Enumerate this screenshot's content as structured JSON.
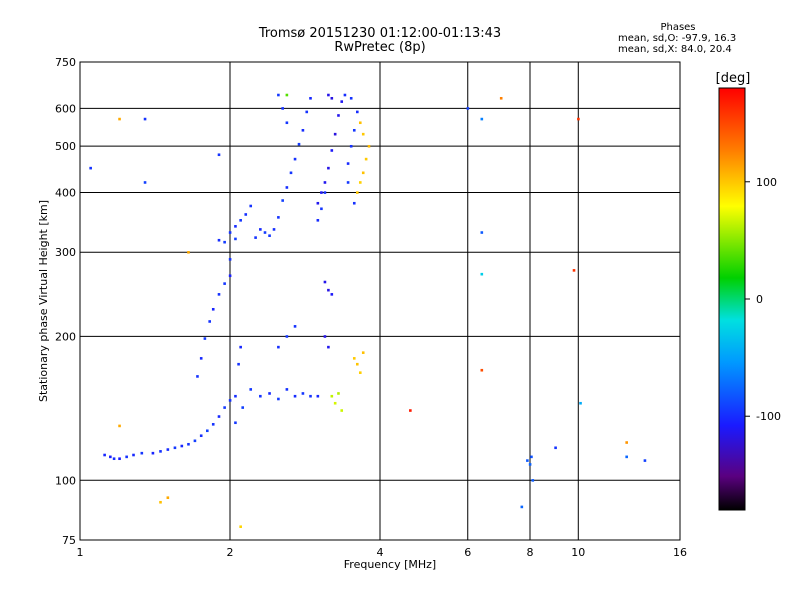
{
  "chart_data": {
    "type": "scatter",
    "title": "Tromsø 20151230 01:12:00-01:13:43",
    "subtitle": "RwPretec (8p)",
    "xlabel": "Frequency [MHz]",
    "ylabel": "Stationary phase Virtual Height [km]",
    "x_scale": "log2",
    "y_scale": "log",
    "xlim": [
      1,
      16
    ],
    "ylim": [
      75,
      750
    ],
    "x_ticks": [
      1,
      2,
      4,
      6,
      8,
      10,
      16
    ],
    "y_ticks": [
      75,
      100,
      200,
      300,
      400,
      500,
      600,
      750
    ],
    "grid": true,
    "phase_stats": {
      "title": "Phases",
      "line_o": "mean, sd,O: -97.9, 16.3",
      "line_x": "mean, sd,X:  84.0, 20.4"
    },
    "colorbar": {
      "label": "[deg]",
      "ticks": [
        100,
        0,
        -100
      ],
      "range": [
        -180,
        180
      ]
    },
    "series": [
      {
        "name": "",
        "points": [
          [
            1.12,
            113,
            -105
          ],
          [
            1.15,
            112,
            -108
          ],
          [
            1.17,
            111,
            -102
          ],
          [
            1.2,
            111,
            -110
          ],
          [
            1.24,
            112,
            -100
          ],
          [
            1.28,
            113,
            -104
          ],
          [
            1.33,
            114,
            -99
          ],
          [
            1.4,
            114,
            -106
          ],
          [
            1.45,
            115,
            -100
          ],
          [
            1.5,
            116,
            -103
          ],
          [
            1.55,
            117,
            -98
          ],
          [
            1.6,
            118,
            -105
          ],
          [
            1.65,
            119,
            -100
          ],
          [
            1.7,
            121,
            -96
          ],
          [
            1.75,
            124,
            -102
          ],
          [
            1.8,
            127,
            -95
          ],
          [
            1.85,
            131,
            -100
          ],
          [
            1.9,
            136,
            -104
          ],
          [
            1.95,
            142,
            -98
          ],
          [
            2.0,
            147,
            -101
          ],
          [
            1.72,
            165,
            -100
          ],
          [
            1.75,
            180,
            -104
          ],
          [
            1.78,
            198,
            -97
          ],
          [
            1.82,
            215,
            -100
          ],
          [
            1.85,
            228,
            -106
          ],
          [
            1.9,
            245,
            -101
          ],
          [
            1.95,
            258,
            -99
          ],
          [
            2.0,
            268,
            -108
          ],
          [
            2.0,
            290,
            -100
          ],
          [
            2.05,
            132,
            -98
          ],
          [
            2.05,
            150,
            -102
          ],
          [
            2.08,
            175,
            -100
          ],
          [
            2.1,
            190,
            -105
          ],
          [
            2.12,
            142,
            -95
          ]
        ]
      },
      {
        "name": "",
        "points": [
          [
            1.95,
            315,
            -97
          ],
          [
            2.0,
            330,
            -100
          ],
          [
            2.05,
            340,
            -103
          ],
          [
            2.1,
            350,
            -99
          ],
          [
            2.15,
            360,
            -101
          ],
          [
            2.05,
            320,
            -96
          ],
          [
            1.9,
            318,
            -102
          ],
          [
            2.2,
            375,
            -100
          ],
          [
            2.3,
            335,
            -104
          ],
          [
            2.4,
            325,
            -98
          ],
          [
            2.5,
            355,
            -100
          ],
          [
            2.55,
            385,
            -95
          ],
          [
            2.6,
            410,
            -102
          ],
          [
            2.65,
            440,
            -99
          ],
          [
            2.7,
            470,
            -101
          ],
          [
            2.75,
            505,
            -97
          ],
          [
            2.8,
            540,
            -103
          ],
          [
            2.85,
            590,
            -100
          ],
          [
            2.9,
            630,
            -105
          ],
          [
            2.5,
            640,
            -98
          ],
          [
            2.55,
            600,
            -101
          ],
          [
            2.6,
            560,
            -99
          ],
          [
            2.45,
            335,
            -102
          ],
          [
            2.35,
            330,
            -97
          ],
          [
            2.25,
            322,
            -100
          ],
          [
            3.0,
            350,
            -103
          ],
          [
            3.05,
            370,
            -99
          ],
          [
            3.1,
            400,
            -101
          ]
        ]
      },
      {
        "name": "",
        "points": [
          [
            3.1,
            420,
            -115
          ],
          [
            3.15,
            450,
            -118
          ],
          [
            3.2,
            490,
            -112
          ],
          [
            3.25,
            530,
            -120
          ],
          [
            3.3,
            580,
            -116
          ],
          [
            3.35,
            620,
            -114
          ],
          [
            3.2,
            630,
            -119
          ],
          [
            3.15,
            640,
            -117
          ],
          [
            3.05,
            400,
            -113
          ],
          [
            3.0,
            380,
            -115
          ],
          [
            3.1,
            260,
            -116
          ],
          [
            3.15,
            250,
            -118
          ],
          [
            3.2,
            245,
            -112
          ],
          [
            3.1,
            200,
            -117
          ],
          [
            3.15,
            190,
            -115
          ]
        ]
      },
      {
        "name": "",
        "points": [
          [
            3.45,
            460,
            -104
          ],
          [
            3.5,
            500,
            -101
          ],
          [
            3.55,
            540,
            -99
          ],
          [
            3.6,
            590,
            -103
          ],
          [
            3.5,
            630,
            -100
          ],
          [
            3.4,
            640,
            -102
          ],
          [
            3.45,
            420,
            -98
          ],
          [
            3.55,
            380,
            -101
          ]
        ]
      },
      {
        "name": "",
        "points": [
          [
            3.6,
            400,
            97
          ],
          [
            3.65,
            420,
            92
          ],
          [
            3.7,
            440,
            99
          ],
          [
            3.75,
            470,
            95
          ],
          [
            3.8,
            500,
            102
          ],
          [
            3.7,
            530,
            96
          ],
          [
            3.65,
            560,
            100
          ],
          [
            3.55,
            180,
            95
          ],
          [
            3.6,
            175,
            98
          ],
          [
            3.65,
            168,
            93
          ],
          [
            3.7,
            185,
            100
          ],
          [
            3.2,
            150,
            55
          ],
          [
            3.25,
            145,
            60
          ],
          [
            3.3,
            152,
            52
          ],
          [
            3.35,
            140,
            58
          ]
        ]
      },
      {
        "name": "",
        "points": [
          [
            2.2,
            155,
            -98
          ],
          [
            2.3,
            150,
            -100
          ],
          [
            2.4,
            152,
            -104
          ],
          [
            2.5,
            148,
            -97
          ],
          [
            2.6,
            155,
            -101
          ],
          [
            2.7,
            150,
            -103
          ],
          [
            2.8,
            152,
            -99
          ],
          [
            2.9,
            150,
            -100
          ],
          [
            3.0,
            150,
            -105
          ],
          [
            2.5,
            190,
            -102
          ],
          [
            2.6,
            200,
            -98
          ],
          [
            2.7,
            210,
            -100
          ]
        ]
      },
      {
        "name": "",
        "points": [
          [
            7.9,
            110,
            -85
          ],
          [
            8.0,
            108,
            -82
          ],
          [
            8.05,
            112,
            -88
          ],
          [
            8.1,
            100,
            -84
          ],
          [
            7.7,
            88,
            -80
          ],
          [
            6.4,
            270,
            -30
          ],
          [
            6.4,
            330,
            -85
          ],
          [
            10.1,
            145,
            -50
          ],
          [
            13.6,
            110,
            -95
          ],
          [
            12.5,
            112,
            -80
          ],
          [
            9.0,
            117,
            -100
          ],
          [
            6.0,
            600,
            -95
          ],
          [
            6.4,
            570,
            -70
          ],
          [
            1.65,
            300,
            110
          ],
          [
            1.35,
            570,
            -100
          ],
          [
            1.2,
            570,
            110
          ],
          [
            1.05,
            450,
            -100
          ],
          [
            1.35,
            420,
            -95
          ],
          [
            1.9,
            480,
            -100
          ],
          [
            2.6,
            640,
            30
          ]
        ]
      },
      {
        "name": "",
        "points": [
          [
            10.0,
            570,
            160
          ],
          [
            9.8,
            275,
            160
          ],
          [
            4.6,
            140,
            170
          ],
          [
            7.0,
            630,
            130
          ],
          [
            6.4,
            170,
            150
          ],
          [
            1.45,
            90,
            100
          ],
          [
            1.5,
            92,
            110
          ],
          [
            2.1,
            80,
            90
          ],
          [
            1.2,
            130,
            110
          ],
          [
            12.5,
            120,
            120
          ]
        ]
      }
    ]
  }
}
